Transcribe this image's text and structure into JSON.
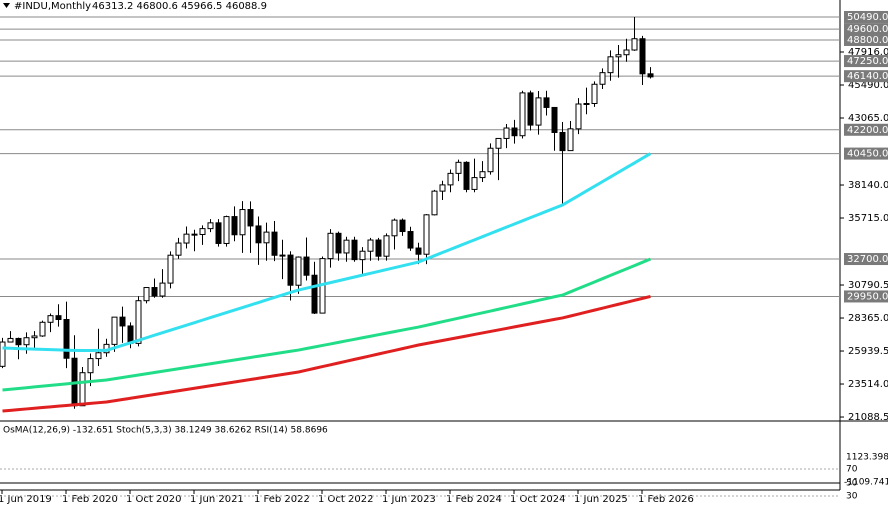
{
  "chart_data": {
    "type": "candlestick",
    "title": "#INDU,Monthly",
    "ohlc_label": "46313.2 46800.6 45966.5 46088.9",
    "categories": [
      "1 Jun 2019",
      null,
      null,
      null,
      null,
      null,
      null,
      null,
      "1 Feb 2020",
      null,
      null,
      null,
      null,
      null,
      null,
      null,
      "1 Oct 2020",
      null,
      null,
      null,
      null,
      null,
      null,
      null,
      "1 Jun 2021",
      null,
      null,
      null,
      null,
      null,
      null,
      null,
      "1 Feb 2022",
      null,
      null,
      null,
      null,
      null,
      null,
      null,
      "1 Oct 2022",
      null,
      null,
      null,
      null,
      null,
      null,
      null,
      "1 Jun 2023",
      null,
      null,
      null,
      null,
      null,
      null,
      null,
      "1 Feb 2024",
      null,
      null,
      null,
      null,
      null,
      null,
      null,
      "1 Oct 2024",
      null,
      null,
      null,
      null,
      null,
      null,
      null,
      "1 Jun 2025",
      null,
      null,
      null,
      null,
      null,
      null,
      null,
      "1 Feb 2026",
      null
    ],
    "open": [
      24815,
      26600,
      26864,
      26403,
      26917,
      27046,
      28051,
      28538,
      28256,
      25409,
      21917,
      24346,
      25383,
      25813,
      26428,
      28430,
      27782,
      26502,
      29638,
      30606,
      29983,
      30932,
      32982,
      33875,
      34529,
      34503,
      34935,
      35361,
      33844,
      35820,
      34484,
      36338,
      35132,
      33893,
      34678,
      32977,
      32990,
      30775,
      32845,
      31510,
      28726,
      32733,
      34590,
      33147,
      34086,
      32657,
      33274,
      34098,
      32908,
      34408,
      35560,
      34722,
      33508,
      33053,
      35951,
      37690,
      38150,
      38996,
      39807,
      37816,
      38686,
      39119,
      40843,
      41563,
      42330,
      41763,
      44911,
      42544,
      44545,
      43841,
      42002,
      40669,
      42270,
      44095,
      44131,
      45545,
      46398,
      47563,
      47716,
      48063,
      48892,
      46313.2
    ],
    "high": [
      26907,
      27398,
      26920,
      27306,
      27398,
      28174,
      28701,
      29373,
      29568,
      27102,
      24765,
      25759,
      27580,
      26838,
      28431,
      29199,
      28041,
      29964,
      30637,
      31272,
      31961,
      33259,
      34256,
      35091,
      34849,
      35171,
      35631,
      35631,
      35892,
      36566,
      36952,
      36934,
      35824,
      35372,
      35492,
      34118,
      33272,
      32899,
      34281,
      32504,
      32889,
      34896,
      34712,
      34334,
      34334,
      33572,
      34257,
      34257,
      34589,
      35679,
      35679,
      35070,
      33895,
      36000,
      37779,
      38451,
      39282,
      40003,
      39889,
      40077,
      39900,
      41199,
      41585,
      42628,
      42932,
      45072,
      45074,
      45054,
      45066,
      43847,
      42772,
      42842,
      44526,
      45299,
      45760,
      46714,
      48040,
      48432,
      48886,
      50490,
      49100,
      46800.6
    ],
    "low": [
      24680,
      26589,
      25339,
      25743,
      26143,
      26978,
      27325,
      27734,
      24681,
      21700,
      21900,
      23361,
      24843,
      25523,
      25876,
      26537,
      26143,
      26277,
      29445,
      29856,
      29856,
      30547,
      32717,
      33473,
      33271,
      33742,
      34676,
      33613,
      33613,
      34006,
      33150,
      33150,
      32272,
      32578,
      32551,
      31228,
      29653,
      30143,
      31120,
      28660,
      28715,
      32073,
      32573,
      32500,
      32500,
      31429,
      32574,
      32586,
      32586,
      33404,
      34398,
      33300,
      32327,
      32327,
      35900,
      37038,
      37612,
      38426,
      37611,
      37612,
      38366,
      38904,
      38499,
      40853,
      41184,
      41563,
      42145,
      41844,
      43250,
      40661,
      36612,
      40669,
      41879,
      43340,
      43881,
      45199,
      45800,
      46030,
      47200,
      48000,
      45490,
      45966.5
    ],
    "close": [
      26600,
      26864,
      26403,
      26917,
      27046,
      28051,
      28538,
      28256,
      25409,
      21917,
      24346,
      25383,
      25813,
      26428,
      28430,
      27782,
      26502,
      29638,
      30606,
      29983,
      30932,
      32982,
      33875,
      34529,
      34503,
      34935,
      35361,
      33844,
      35820,
      34484,
      36338,
      35132,
      33893,
      34678,
      32977,
      32990,
      30775,
      32845,
      31510,
      28726,
      32733,
      34590,
      33147,
      34086,
      32657,
      33274,
      34098,
      32908,
      34408,
      35560,
      34722,
      33508,
      33053,
      35951,
      37690,
      38150,
      38996,
      39807,
      37816,
      38686,
      39119,
      40843,
      41563,
      42330,
      41763,
      44911,
      42544,
      44545,
      43841,
      42002,
      40669,
      42270,
      44095,
      44131,
      45545,
      46398,
      47563,
      47716,
      48063,
      48892,
      46313.2,
      46088.9
    ],
    "series": [
      {
        "color": "#33e0f0",
        "values": [
          26160,
          26140,
          26120,
          26100,
          26080,
          26060,
          26040,
          26020,
          26000,
          25990,
          25980,
          25980,
          25985,
          25990,
          26175,
          26360,
          26545,
          26730,
          26915,
          27100,
          27285,
          27470,
          27655,
          27840,
          28025,
          28210,
          28395,
          28580,
          28765,
          28950,
          29135,
          29320,
          29505,
          29690,
          29875,
          30060,
          30245,
          30420,
          30557,
          30694,
          30831,
          30968,
          31105,
          31242,
          31379,
          31516,
          31653,
          31790,
          31927,
          32064,
          32201,
          32338,
          32480,
          32713,
          32946,
          33179,
          33412,
          33645,
          33878,
          34111,
          34344,
          34577,
          34810,
          35043,
          35276,
          35509,
          35742,
          35975,
          36208,
          36441,
          36670,
          37014,
          37358,
          37702,
          38046,
          38390,
          38734,
          39078,
          39422,
          39766,
          40110,
          40450
        ]
      },
      {
        "color": "#22dd88",
        "values": [
          23073,
          23130,
          23187,
          23244,
          23301,
          23358,
          23415,
          23472,
          23529,
          23586,
          23643,
          23700,
          23757,
          23810,
          23902,
          23994,
          24086,
          24178,
          24270,
          24362,
          24454,
          24546,
          24638,
          24730,
          24822,
          24914,
          25006,
          25098,
          25190,
          25282,
          25374,
          25466,
          25558,
          25650,
          25742,
          25834,
          25926,
          26010,
          26123,
          26236,
          26349,
          26462,
          26575,
          26688,
          26801,
          26914,
          27027,
          27140,
          27253,
          27366,
          27479,
          27592,
          27700,
          27831,
          27962,
          28093,
          28224,
          28355,
          28486,
          28617,
          28748,
          28879,
          29010,
          29141,
          29272,
          29403,
          29534,
          29665,
          29796,
          29927,
          30050,
          30291,
          30532,
          30773,
          31014,
          31255,
          31496,
          31737,
          31978,
          32219,
          32460,
          32700
        ]
      },
      {
        "color": "#e02020",
        "values": [
          21530,
          21581,
          21632,
          21683,
          21734,
          21785,
          21836,
          21887,
          21938,
          21989,
          22040,
          22091,
          22142,
          22190,
          22282,
          22374,
          22466,
          22558,
          22650,
          22742,
          22834,
          22926,
          23018,
          23110,
          23202,
          23294,
          23386,
          23478,
          23570,
          23662,
          23754,
          23846,
          23938,
          24030,
          24122,
          24214,
          24306,
          24400,
          24532,
          24664,
          24796,
          24928,
          25060,
          25192,
          25324,
          25456,
          25588,
          25720,
          25852,
          25984,
          26116,
          26248,
          26380,
          26491,
          26602,
          26713,
          26824,
          26935,
          27046,
          27157,
          27268,
          27379,
          27490,
          27601,
          27712,
          27823,
          27934,
          28045,
          28156,
          28267,
          28370,
          28514,
          28658,
          28802,
          28946,
          29090,
          29234,
          29378,
          29522,
          29666,
          29810,
          29950
        ]
      }
    ],
    "ylim": [
      20870,
      51150
    ],
    "yticks": [
      {
        "value": 47916,
        "label": "47916.0"
      },
      {
        "value": 45490,
        "label": "45490.0"
      },
      {
        "value": 43065,
        "label": "43065.0"
      },
      {
        "value": 38140,
        "label": "38140.0"
      },
      {
        "value": 35715,
        "label": "35715.0"
      },
      {
        "value": 30790.5,
        "label": "30790.5"
      },
      {
        "value": 28365,
        "label": "28365.0"
      },
      {
        "value": 25939.5,
        "label": "25939.5"
      },
      {
        "value": 23514,
        "label": "23514.0"
      },
      {
        "value": 21088.5,
        "label": "21088.5"
      }
    ],
    "levels": [
      {
        "value": 50490,
        "label": "50490.0"
      },
      {
        "value": 49600,
        "label": "49600.0"
      },
      {
        "value": 48800,
        "label": "48800.0"
      },
      {
        "value": 47250,
        "label": "47250.0"
      },
      {
        "value": 46140,
        "label": "46140.0"
      },
      {
        "value": 42200,
        "label": "42200.0"
      },
      {
        "value": 40450,
        "label": "40450.0"
      },
      {
        "value": 32700,
        "label": "32700.0"
      },
      {
        "value": 29950,
        "label": "29950.0"
      }
    ],
    "indicator": {
      "header": "OsMA(12,26,9) -132.651  Stoch(5,3,3) 38.1249 38.6262  RSI(14) 58.8696",
      "labels": [
        "1123.398",
        "70",
        "50",
        "30",
        "-1109.741"
      ]
    }
  }
}
